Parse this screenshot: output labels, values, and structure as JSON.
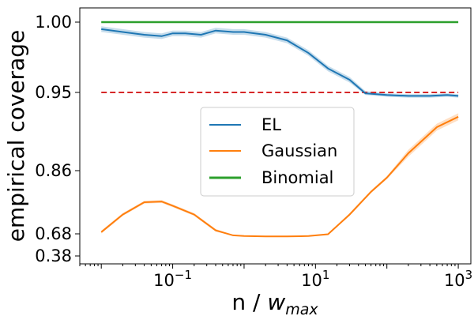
{
  "chart_data": {
    "type": "line",
    "xlabel_main": "n / ",
    "xlabel_italic": "w",
    "xlabel_sub": "max",
    "ylabel": "empirical coverage",
    "x_scale": "log",
    "xlim": [
      0.005,
      1500
    ],
    "x_ticks": [
      {
        "value": 0.1,
        "base": "10",
        "exp": "−1"
      },
      {
        "value": 10,
        "base": "10",
        "exp": "1"
      },
      {
        "value": 1000,
        "base": "10",
        "exp": "3"
      }
    ],
    "y_ticks": [
      {
        "value": 0.38,
        "label": "0.38"
      },
      {
        "value": 0.68,
        "label": "0.68"
      },
      {
        "value": 0.86,
        "label": "0.86"
      },
      {
        "value": 0.95,
        "label": "0.95"
      },
      {
        "value": 1.0,
        "label": "1.00"
      }
    ],
    "reference_line": {
      "y": 0.95,
      "style": "dashed",
      "color": "#d62728"
    },
    "legend_position": "center",
    "series": [
      {
        "name": "EL",
        "color": "#1f77b4",
        "x": [
          0.01,
          0.02,
          0.04,
          0.07,
          0.1,
          0.15,
          0.25,
          0.4,
          0.7,
          1,
          2,
          4,
          8,
          15,
          30,
          50,
          100,
          200,
          400,
          700,
          1000
        ],
        "y": [
          0.995,
          0.993,
          0.991,
          0.99,
          0.992,
          0.992,
          0.991,
          0.994,
          0.993,
          0.993,
          0.991,
          0.987,
          0.978,
          0.967,
          0.959,
          0.949,
          0.947,
          0.946,
          0.946,
          0.947,
          0.946
        ],
        "band": 0.002
      },
      {
        "name": "Gaussian",
        "color": "#ff7f0e",
        "x": [
          0.01,
          0.02,
          0.04,
          0.07,
          0.1,
          0.2,
          0.4,
          0.7,
          1,
          2,
          4,
          8,
          15,
          30,
          60,
          100,
          200,
          500,
          1000
        ],
        "y": [
          0.685,
          0.735,
          0.77,
          0.772,
          0.76,
          0.735,
          0.69,
          0.66,
          0.65,
          0.645,
          0.645,
          0.65,
          0.675,
          0.735,
          0.8,
          0.84,
          0.88,
          0.91,
          0.922
        ],
        "band": 0.004
      },
      {
        "name": "Binomial",
        "color": "#2ca02c",
        "x": [
          0.01,
          0.1,
          1,
          10,
          100,
          1000
        ],
        "y": [
          1.0,
          1.0,
          1.0,
          1.0,
          1.0,
          1.0
        ],
        "band": 0
      }
    ]
  }
}
